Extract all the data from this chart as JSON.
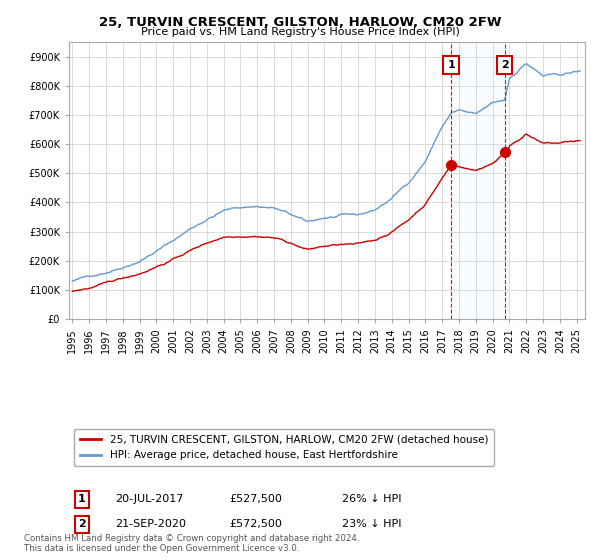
{
  "title1": "25, TURVIN CRESCENT, GILSTON, HARLOW, CM20 2FW",
  "title2": "Price paid vs. HM Land Registry's House Price Index (HPI)",
  "legend1": "25, TURVIN CRESCENT, GILSTON, HARLOW, CM20 2FW (detached house)",
  "legend2": "HPI: Average price, detached house, East Hertfordshire",
  "sale1_date_str": "20-JUL-2017",
  "sale1_year": 2017.54,
  "sale1_price": 527500,
  "sale1_pct": "26% ↓ HPI",
  "sale2_date_str": "21-SEP-2020",
  "sale2_year": 2020.72,
  "sale2_price": 572500,
  "sale2_pct": "23% ↓ HPI",
  "first_price": 95000,
  "first_year": 1995.0,
  "ylim": [
    0,
    950000
  ],
  "yticks": [
    0,
    100000,
    200000,
    300000,
    400000,
    500000,
    600000,
    700000,
    800000,
    900000
  ],
  "hpi_color": "#6699cc",
  "price_color": "#cc0000",
  "shade_color": "#ddeeff",
  "annotation_box_color": "#cc0000",
  "footer": "Contains HM Land Registry data © Crown copyright and database right 2024.\nThis data is licensed under the Open Government Licence v3.0.",
  "background_color": "#ffffff",
  "grid_color": "#cccccc",
  "hpi_knots_x": [
    1995,
    1996,
    1997,
    1998,
    1999,
    2000,
    2001,
    2002,
    2003,
    2004,
    2005,
    2006,
    2007,
    2008,
    2009,
    2010,
    2011,
    2012,
    2013,
    2014,
    2015,
    2016,
    2017,
    2017.54,
    2018,
    2019,
    2020,
    2020.72,
    2021,
    2022,
    2023,
    2024,
    2025
  ],
  "hpi_knots_y": [
    130000,
    145000,
    163000,
    185000,
    210000,
    245000,
    280000,
    320000,
    355000,
    385000,
    395000,
    400000,
    395000,
    370000,
    340000,
    355000,
    360000,
    358000,
    375000,
    415000,
    470000,
    545000,
    665000,
    710000,
    720000,
    700000,
    735000,
    745000,
    820000,
    875000,
    830000,
    830000,
    840000
  ],
  "red_knots_x": [
    1995,
    1996,
    1997,
    1998,
    1999,
    2000,
    2001,
    2002,
    2003,
    2004,
    2005,
    2006,
    2007,
    2008,
    2009,
    2010,
    2011,
    2012,
    2013,
    2014,
    2015,
    2016,
    2017,
    2017.54,
    2017.55,
    2018,
    2019,
    2020,
    2020.72,
    2020.73,
    2021,
    2022,
    2023,
    2024,
    2025
  ],
  "red_knots_y": [
    95000,
    106000,
    119000,
    135000,
    153000,
    179000,
    204000,
    233000,
    259000,
    281000,
    288000,
    292000,
    288000,
    270000,
    248000,
    259000,
    263000,
    261000,
    273000,
    303000,
    343000,
    398000,
    485000,
    527500,
    527500,
    525000,
    511000,
    537000,
    572500,
    572500,
    599000,
    639000,
    606000,
    606000,
    612000
  ]
}
